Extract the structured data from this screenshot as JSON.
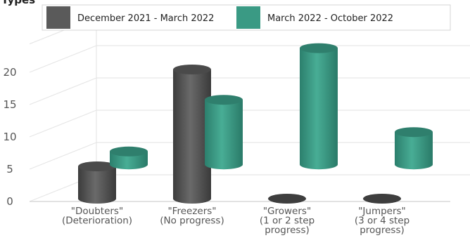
{
  "chart_data": {
    "type": "bar",
    "title_fragment": "Types",
    "categories": [
      [
        "\"Doubters\"",
        "(Deterioration)"
      ],
      [
        "\"Freezers\"",
        "(No progress)"
      ],
      [
        "\"Growers\"",
        "(1 or 2 step",
        "progress)"
      ],
      [
        "\"Jumpers\"",
        "(3 or 4 step",
        "progress)"
      ]
    ],
    "series": [
      {
        "name": "December 2021 - March 2022",
        "values": [
          5,
          20,
          0,
          0
        ],
        "color": "#5a5a5a"
      },
      {
        "name": "March 2022 - October 2022",
        "values": [
          2,
          10,
          18,
          5
        ],
        "color": "#3a9a84"
      }
    ],
    "series_baselines": [
      0,
      4
    ],
    "y_ticks": [
      0,
      5,
      10,
      15,
      20
    ],
    "ylim": [
      0,
      22
    ],
    "grid": true,
    "legend_position": "top",
    "bar_style": "3d-cylinder"
  }
}
